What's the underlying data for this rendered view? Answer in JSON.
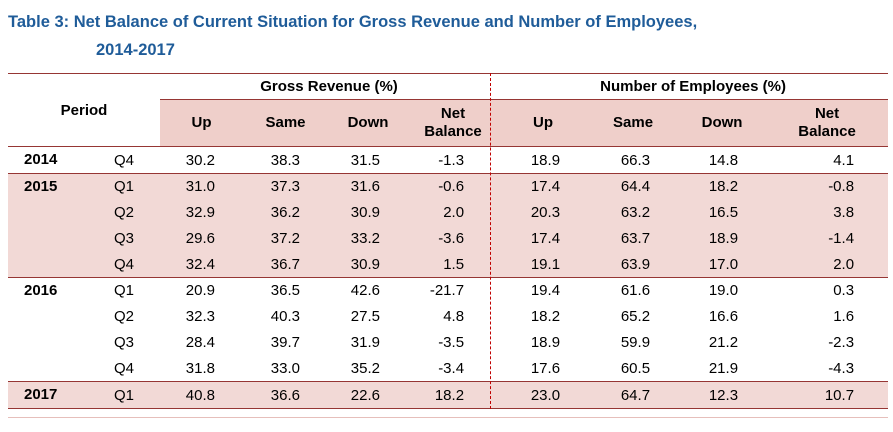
{
  "title": {
    "line1": "Table 3: Net Balance of Current Situation for Gross Revenue and Number of Employees,",
    "line2": "2014-2017"
  },
  "table": {
    "header": {
      "period": "Period",
      "group1": "Gross Revenue (%)",
      "group2": "Number of Employees (%)",
      "sub": [
        "Up",
        "Same",
        "Down",
        "Net Balance"
      ]
    },
    "rows": [
      {
        "year": "2014",
        "quarter": "Q4",
        "band": "white",
        "gr": [
          "30.2",
          "38.3",
          "31.5",
          "-1.3"
        ],
        "emp": [
          "18.9",
          "66.3",
          "14.8",
          "4.1"
        ]
      },
      {
        "year": "2015",
        "quarter": "Q1",
        "band": "pink",
        "gr": [
          "31.0",
          "37.3",
          "31.6",
          "-0.6"
        ],
        "emp": [
          "17.4",
          "64.4",
          "18.2",
          "-0.8"
        ]
      },
      {
        "year": "",
        "quarter": "Q2",
        "band": "pink",
        "gr": [
          "32.9",
          "36.2",
          "30.9",
          "2.0"
        ],
        "emp": [
          "20.3",
          "63.2",
          "16.5",
          "3.8"
        ]
      },
      {
        "year": "",
        "quarter": "Q3",
        "band": "pink",
        "gr": [
          "29.6",
          "37.2",
          "33.2",
          "-3.6"
        ],
        "emp": [
          "17.4",
          "63.7",
          "18.9",
          "-1.4"
        ]
      },
      {
        "year": "",
        "quarter": "Q4",
        "band": "pink",
        "gr": [
          "32.4",
          "36.7",
          "30.9",
          "1.5"
        ],
        "emp": [
          "19.1",
          "63.9",
          "17.0",
          "2.0"
        ]
      },
      {
        "year": "2016",
        "quarter": "Q1",
        "band": "white",
        "gr": [
          "20.9",
          "36.5",
          "42.6",
          "-21.7"
        ],
        "emp": [
          "19.4",
          "61.6",
          "19.0",
          "0.3"
        ]
      },
      {
        "year": "",
        "quarter": "Q2",
        "band": "white",
        "gr": [
          "32.3",
          "40.3",
          "27.5",
          "4.8"
        ],
        "emp": [
          "18.2",
          "65.2",
          "16.6",
          "1.6"
        ]
      },
      {
        "year": "",
        "quarter": "Q3",
        "band": "white",
        "gr": [
          "28.4",
          "39.7",
          "31.9",
          "-3.5"
        ],
        "emp": [
          "18.9",
          "59.9",
          "21.2",
          "-2.3"
        ]
      },
      {
        "year": "",
        "quarter": "Q4",
        "band": "white",
        "gr": [
          "31.8",
          "33.0",
          "35.2",
          "-3.4"
        ],
        "emp": [
          "17.6",
          "60.5",
          "21.9",
          "-4.3"
        ]
      },
      {
        "year": "2017",
        "quarter": "Q1",
        "band": "pink",
        "gr": [
          "40.8",
          "36.6",
          "22.6",
          "18.2"
        ],
        "emp": [
          "23.0",
          "64.7",
          "12.3",
          "10.7"
        ]
      }
    ]
  },
  "colors": {
    "title": "#1f5c99",
    "border": "#963634",
    "divider_dashed": "#c00000",
    "header_fill": "#efcfca",
    "band_fill": "#f2d9d6"
  }
}
